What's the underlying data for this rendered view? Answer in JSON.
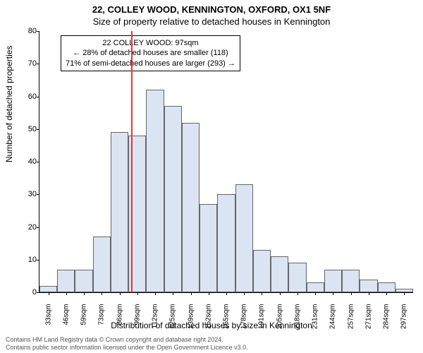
{
  "title_line1": "22, COLLEY WOOD, KENNINGTON, OXFORD, OX1 5NF",
  "title_line2": "Size of property relative to detached houses in Kennington",
  "ylabel": "Number of detached properties",
  "xlabel": "Distribution of detached houses by size in Kennington",
  "footer_line1": "Contains HM Land Registry data © Crown copyright and database right 2024.",
  "footer_line2": "Contains public sector information licensed under the Open Government Licence v3.0.",
  "annotation": {
    "line1": "22 COLLEY WOOD: 97sqm",
    "line2": "← 28% of detached houses are smaller (118)",
    "line3": "71% of semi-detached houses are larger (293) →"
  },
  "chart": {
    "type": "histogram",
    "ylim": [
      0,
      80
    ],
    "ytick_step": 10,
    "bar_fill": "#dbe4f2",
    "bar_stroke": "#666666",
    "marker_color": "#e53935",
    "marker_x_sqm": 97,
    "background": "#ffffff",
    "x_start_sqm": 30,
    "x_bin_width_sqm": 13,
    "x_labels": [
      "33sqm",
      "46sqm",
      "59sqm",
      "73sqm",
      "86sqm",
      "99sqm",
      "112sqm",
      "125sqm",
      "139sqm",
      "152sqm",
      "165sqm",
      "178sqm",
      "191sqm",
      "205sqm",
      "218sqm",
      "231sqm",
      "244sqm",
      "257sqm",
      "271sqm",
      "284sqm",
      "297sqm"
    ],
    "values": [
      2,
      7,
      7,
      17,
      49,
      48,
      62,
      57,
      52,
      27,
      30,
      33,
      13,
      11,
      9,
      3,
      7,
      7,
      4,
      3,
      1
    ],
    "title_fontsize": 13,
    "label_fontsize": 12,
    "tick_fontsize": 10
  }
}
